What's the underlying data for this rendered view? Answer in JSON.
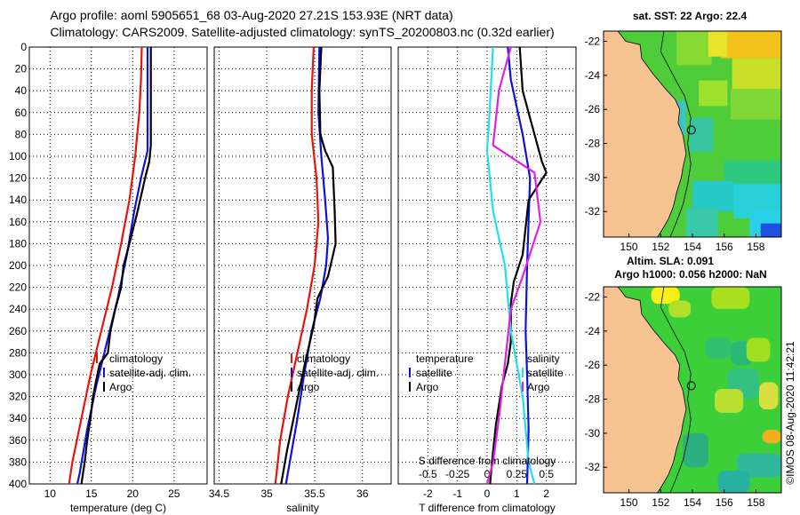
{
  "header": {
    "line1": "Argo profile: aoml 5905651_68 03-Aug-2020 27.21S 153.93E (NRT data)",
    "line2": "Climatology: CARS2009. Satellite-adjusted climatology: synTS_20200803.nc (0.32d earlier)"
  },
  "side_stamp": "©IMOS 08-Aug-2020 11:42:21",
  "colors": {
    "climatology": "#e8130f",
    "satellite": "#1010dd",
    "argo": "#000000",
    "salinity_diff": "#e020e0",
    "salinity_sat_diff": "#20e0f0",
    "land": "#f7c491"
  },
  "chart_data": [
    {
      "id": "temperature",
      "type": "line",
      "xlabel": "temperature (deg C)",
      "ylabel": "",
      "xlim": [
        7.5,
        29
      ],
      "ylim": [
        400,
        0
      ],
      "xticks": [
        "10",
        "15",
        "20",
        "25"
      ],
      "xtick_values": [
        10,
        15,
        20,
        25
      ],
      "yticks": [
        "0",
        "20",
        "40",
        "60",
        "80",
        "100",
        "120",
        "140",
        "160",
        "180",
        "200",
        "220",
        "240",
        "260",
        "280",
        "300",
        "320",
        "340",
        "360",
        "380",
        "400"
      ],
      "ytick_values": [
        0,
        20,
        40,
        60,
        80,
        100,
        120,
        140,
        160,
        180,
        200,
        220,
        240,
        260,
        280,
        300,
        320,
        340,
        360,
        380,
        400
      ],
      "legend": [
        "climatology",
        "satellite-adj. clim.",
        "Argo"
      ],
      "series": [
        {
          "name": "climatology",
          "points": [
            [
              21.1,
              0
            ],
            [
              21.0,
              30
            ],
            [
              20.8,
              60
            ],
            [
              20.3,
              100
            ],
            [
              19.6,
              140
            ],
            [
              18.6,
              180
            ],
            [
              17.5,
              220
            ],
            [
              16.2,
              260
            ],
            [
              14.9,
              300
            ],
            [
              13.8,
              340
            ],
            [
              12.7,
              380
            ],
            [
              12.3,
              400
            ]
          ]
        },
        {
          "name": "satellite-adj. clim.",
          "points": [
            [
              21.8,
              0
            ],
            [
              21.8,
              50
            ],
            [
              21.8,
              95
            ],
            [
              21.0,
              120
            ],
            [
              20.2,
              150
            ],
            [
              19.3,
              190
            ],
            [
              18.2,
              230
            ],
            [
              16.9,
              270
            ],
            [
              15.6,
              310
            ],
            [
              14.5,
              350
            ],
            [
              13.6,
              390
            ],
            [
              13.3,
              400
            ]
          ]
        },
        {
          "name": "Argo",
          "points": [
            [
              22.2,
              0
            ],
            [
              22.2,
              30
            ],
            [
              22.2,
              60
            ],
            [
              22.2,
              90
            ],
            [
              22.0,
              105
            ],
            [
              21.5,
              120
            ],
            [
              20.6,
              150
            ],
            [
              19.6,
              180
            ],
            [
              18.9,
              200
            ],
            [
              18.6,
              220
            ],
            [
              17.9,
              240
            ],
            [
              17.3,
              260
            ],
            [
              17.0,
              280
            ],
            [
              16.0,
              290
            ],
            [
              15.6,
              305
            ],
            [
              15.2,
              320
            ],
            [
              14.9,
              340
            ],
            [
              14.5,
              360
            ],
            [
              14.2,
              380
            ],
            [
              13.8,
              400
            ]
          ]
        }
      ]
    },
    {
      "id": "salinity",
      "type": "line",
      "xlabel": "salinity",
      "ylabel": "",
      "xlim": [
        34.45,
        36.3
      ],
      "ylim": [
        400,
        0
      ],
      "xticks": [
        "34.5",
        "35",
        "35.5",
        "36"
      ],
      "xtick_values": [
        34.5,
        35,
        35.5,
        36
      ],
      "legend": [
        "climatology",
        "satellite-adj. clim.",
        "Argo"
      ],
      "series": [
        {
          "name": "climatology",
          "points": [
            [
              35.49,
              0
            ],
            [
              35.47,
              40
            ],
            [
              35.47,
              80
            ],
            [
              35.52,
              120
            ],
            [
              35.54,
              160
            ],
            [
              35.5,
              200
            ],
            [
              35.42,
              240
            ],
            [
              35.32,
              280
            ],
            [
              35.22,
              320
            ],
            [
              35.14,
              360
            ],
            [
              35.09,
              400
            ]
          ]
        },
        {
          "name": "satellite-adj. clim.",
          "points": [
            [
              35.55,
              0
            ],
            [
              35.54,
              60
            ],
            [
              35.57,
              100
            ],
            [
              35.61,
              140
            ],
            [
              35.64,
              175
            ],
            [
              35.62,
              200
            ],
            [
              35.56,
              230
            ],
            [
              35.47,
              260
            ],
            [
              35.39,
              300
            ],
            [
              35.32,
              340
            ],
            [
              35.24,
              380
            ],
            [
              35.2,
              400
            ]
          ]
        },
        {
          "name": "Argo",
          "points": [
            [
              35.57,
              0
            ],
            [
              35.55,
              40
            ],
            [
              35.56,
              80
            ],
            [
              35.61,
              95
            ],
            [
              35.69,
              110
            ],
            [
              35.71,
              150
            ],
            [
              35.72,
              180
            ],
            [
              35.68,
              195
            ],
            [
              35.64,
              210
            ],
            [
              35.53,
              230
            ],
            [
              35.49,
              255
            ],
            [
              35.41,
              285
            ],
            [
              35.35,
              310
            ],
            [
              35.28,
              340
            ],
            [
              35.21,
              370
            ],
            [
              35.15,
              400
            ]
          ]
        }
      ]
    },
    {
      "id": "difference",
      "type": "line",
      "xlabel": "T difference from climatology",
      "top_xlabel": "S difference from climatology",
      "ylabel": "",
      "xlim": [
        -3,
        3
      ],
      "ylim": [
        400,
        0
      ],
      "xticks": [
        "-2",
        "-1",
        "0",
        "1",
        "2"
      ],
      "xtick_values": [
        -2,
        -1,
        0,
        1,
        2
      ],
      "sticks": [
        "-0.5",
        "-0.25",
        "0",
        "0.25",
        "0.5"
      ],
      "stick_values": [
        -0.5,
        -0.25,
        0,
        0.25,
        0.5
      ],
      "legend_temperature_title": "temperature",
      "legend_temperature": [
        "satellite",
        "Argo"
      ],
      "legend_salinity_title": "salinity",
      "legend_salinity": [
        "satellite",
        "Argo"
      ],
      "series": [
        {
          "name": "T satellite",
          "points": [
            [
              0.7,
              0
            ],
            [
              0.8,
              30
            ],
            [
              1.2,
              80
            ],
            [
              1.45,
              120
            ],
            [
              1.35,
              200
            ],
            [
              1.3,
              260
            ],
            [
              1.35,
              300
            ],
            [
              1.4,
              350
            ],
            [
              1.35,
              400
            ]
          ]
        },
        {
          "name": "T Argo",
          "points": [
            [
              1.1,
              0
            ],
            [
              1.2,
              40
            ],
            [
              1.6,
              80
            ],
            [
              1.85,
              105
            ],
            [
              2.0,
              115
            ],
            [
              1.4,
              140
            ],
            [
              1.2,
              190
            ],
            [
              0.9,
              215
            ],
            [
              0.8,
              235
            ],
            [
              0.8,
              270
            ],
            [
              0.7,
              290
            ],
            [
              0.5,
              310
            ],
            [
              0.3,
              345
            ],
            [
              0.2,
              370
            ],
            [
              0.1,
              400
            ]
          ]
        },
        {
          "name": "S satellite",
          "points": [
            [
              0.05,
              0
            ],
            [
              0.02,
              60
            ],
            [
              0.0,
              95
            ],
            [
              0.05,
              150
            ],
            [
              0.15,
              200
            ],
            [
              0.2,
              260
            ],
            [
              0.3,
              320
            ],
            [
              0.35,
              380
            ],
            [
              0.4,
              400
            ]
          ]
        },
        {
          "name": "S Argo",
          "points": [
            [
              0.2,
              0
            ],
            [
              0.1,
              40
            ],
            [
              0.05,
              90
            ],
            [
              0.4,
              115
            ],
            [
              0.45,
              160
            ],
            [
              0.3,
              210
            ],
            [
              0.2,
              240
            ],
            [
              0.15,
              290
            ],
            [
              0.1,
              340
            ],
            [
              0.05,
              380
            ],
            [
              0.0,
              400
            ]
          ]
        }
      ]
    }
  ],
  "maps": [
    {
      "id": "sst-map",
      "title": "sat. SST: 22 Argo: 22.4",
      "yticks": [
        "-22",
        "-24",
        "-26",
        "-28",
        "-30",
        "-32"
      ],
      "xticks": [
        "150",
        "152",
        "154",
        "156",
        "158"
      ]
    },
    {
      "id": "sla-map",
      "title_line1": "Altim. SLA: 0.091",
      "title_line2": "Argo h1000: 0.056 h2000: NaN",
      "yticks": [
        "-22",
        "-24",
        "-26",
        "-28",
        "-30",
        "-32"
      ],
      "xticks": [
        "150",
        "152",
        "154",
        "156",
        "158"
      ]
    }
  ]
}
